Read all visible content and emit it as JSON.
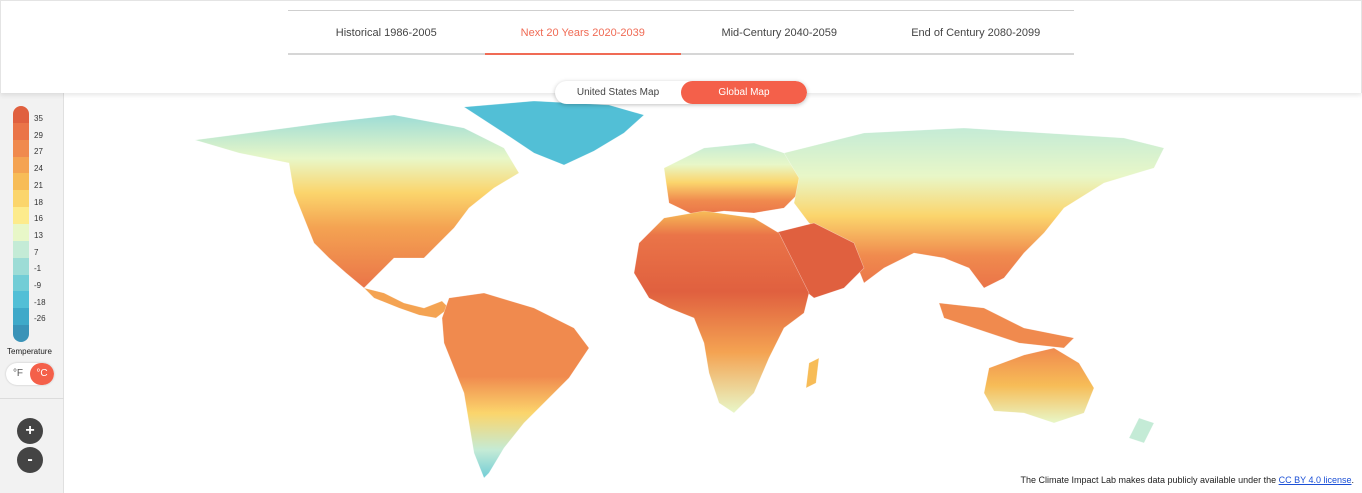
{
  "tabs": [
    {
      "label": "Historical 1986-2005",
      "active": false
    },
    {
      "label": "Next 20 Years 2020-2039",
      "active": true
    },
    {
      "label": "Mid-Century 2040-2059",
      "active": false
    },
    {
      "label": "End of Century 2080-2099",
      "active": false
    }
  ],
  "map_toggle": {
    "us_label": "United States Map",
    "global_label": "Global Map",
    "selected": "Global Map"
  },
  "legend": {
    "title": "Temperature",
    "labels": [
      "35",
      "29",
      "27",
      "24",
      "21",
      "18",
      "16",
      "13",
      "7",
      "-1",
      "-9",
      "-18",
      "-26"
    ],
    "colors": [
      "#e0603f",
      "#ea7448",
      "#f08a4e",
      "#f4a352",
      "#f7bc57",
      "#fbd56c",
      "#fdeb8c",
      "#e8f7c8",
      "#c4ebd6",
      "#9ddcd6",
      "#72cdd6",
      "#52bfd6",
      "#3fa9c9",
      "#3a93b8"
    ]
  },
  "units": {
    "f_label": "°F",
    "c_label": "°C",
    "selected": "°C"
  },
  "zoom": {
    "in_label": "+",
    "out_label": "-"
  },
  "footer": {
    "text": "The Climate Impact Lab makes data publicly available under the ",
    "link_text": "CC BY 4.0 license",
    "suffix": "."
  }
}
